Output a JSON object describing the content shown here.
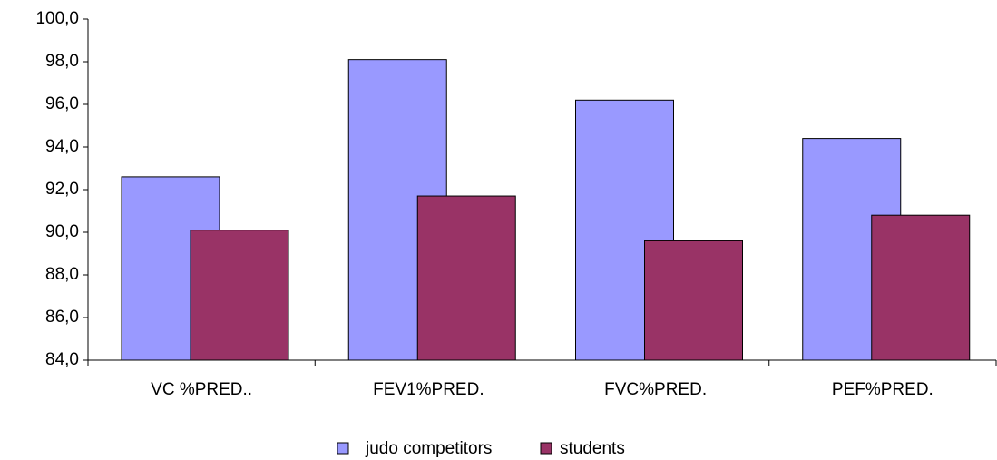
{
  "chart_data": {
    "type": "bar",
    "categories": [
      "VC %PRED..",
      "FEV1%PRED.",
      "FVC%PRED.",
      "PEF%PRED."
    ],
    "series": [
      {
        "name": "judo competitors",
        "color": "#9999ff",
        "values": [
          92.6,
          98.1,
          96.2,
          94.4
        ]
      },
      {
        "name": "students",
        "color": "#993366",
        "values": [
          90.1,
          91.7,
          89.6,
          90.8
        ]
      }
    ],
    "ylim": [
      84,
      100
    ],
    "yticks": [
      {
        "value": 84,
        "label": "84,0"
      },
      {
        "value": 86,
        "label": "86,0"
      },
      {
        "value": 88,
        "label": "88,0"
      },
      {
        "value": 90,
        "label": "90,0"
      },
      {
        "value": 92,
        "label": "92,0"
      },
      {
        "value": 94,
        "label": "94,0"
      },
      {
        "value": 96,
        "label": "96,0"
      },
      {
        "value": 98,
        "label": "98,0"
      },
      {
        "value": 100,
        "label": "100,0"
      }
    ],
    "grid": false,
    "legend": "bottom"
  }
}
